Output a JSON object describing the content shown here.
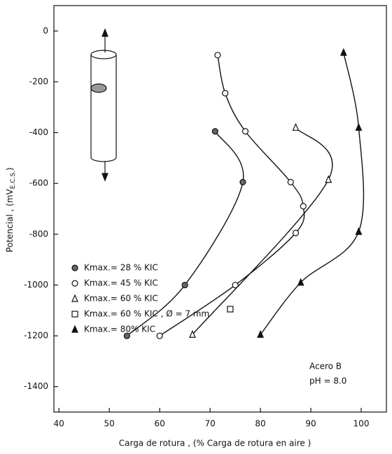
{
  "chart_data": {
    "type": "scatter",
    "xlabel": "Carga de rotura , (% Carga de rotura en aire )",
    "ylabel": "Potencial , (mV",
    "ylabel_sub": "E.C.S.",
    "ylabel_end": ")",
    "xlim": [
      39,
      105
    ],
    "xticks": [
      40,
      50,
      60,
      70,
      80,
      90,
      100
    ],
    "ylim": [
      -1500,
      100
    ],
    "yticks": [
      0,
      -200,
      -400,
      -600,
      -800,
      -1000,
      -1200,
      -1400
    ],
    "series": [
      {
        "name": "Kmax.= 28 % KIC",
        "color": "#111111",
        "marker": "circle-filled",
        "x": [
          71,
          76.5,
          65,
          53.5
        ],
        "values": [
          -395,
          -595,
          -1000,
          -1200
        ]
      },
      {
        "name": "Kmax.= 45 % KIC",
        "color": "#111111",
        "marker": "circle-open",
        "x": [
          71.5,
          73,
          77,
          86,
          88.5,
          87,
          75,
          60
        ],
        "values": [
          -95,
          -245,
          -395,
          -595,
          -690,
          -795,
          -1000,
          -1200
        ]
      },
      {
        "name": "Kmax.= 60 % KIC",
        "color": "#111111",
        "marker": "triangle-open",
        "x": [
          87,
          93.5,
          66.5
        ],
        "values": [
          -380,
          -585,
          -1195
        ]
      },
      {
        "name": "Kmax.= 60 % KIC , Ø = 7 mm",
        "color": "#111111",
        "marker": "square-open",
        "x": [
          74
        ],
        "values": [
          -1095
        ]
      },
      {
        "name": "Kmax.= 80% KIC",
        "color": "#111111",
        "marker": "triangle-filled",
        "x": [
          96.5,
          99.5,
          99.5,
          88,
          80
        ],
        "values": [
          -85,
          -380,
          -790,
          -990,
          -1195
        ]
      }
    ],
    "annotations": [
      "Acero B",
      "pH = 8.0"
    ]
  }
}
